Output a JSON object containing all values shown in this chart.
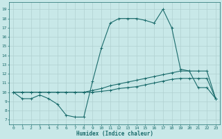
{
  "xlabel": "Humidex (Indice chaleur)",
  "background_color": "#c8e8e8",
  "grid_color": "#b0d0d0",
  "line_color": "#1a6b6b",
  "xlim": [
    -0.5,
    23.5
  ],
  "ylim": [
    6.5,
    19.8
  ],
  "xticks": [
    0,
    1,
    2,
    3,
    4,
    5,
    6,
    7,
    8,
    9,
    10,
    11,
    12,
    13,
    14,
    15,
    16,
    17,
    18,
    19,
    20,
    21,
    22,
    23
  ],
  "yticks": [
    7,
    8,
    9,
    10,
    11,
    12,
    13,
    14,
    15,
    16,
    17,
    18,
    19
  ],
  "line1_x": [
    0,
    1,
    2,
    3,
    4,
    5,
    6,
    7,
    8,
    9,
    10,
    11,
    12,
    13,
    14,
    15,
    16,
    17,
    18,
    19,
    20,
    21,
    22,
    23
  ],
  "line1_y": [
    10,
    9.3,
    9.3,
    9.7,
    9.3,
    8.7,
    7.5,
    7.3,
    7.3,
    11.2,
    14.8,
    17.5,
    18,
    18,
    18,
    17.8,
    17.5,
    19,
    17,
    12.5,
    12.3,
    10.5,
    10.5,
    9.3
  ],
  "line2_x": [
    0,
    1,
    2,
    3,
    4,
    5,
    6,
    7,
    8,
    9,
    10,
    11,
    12,
    13,
    14,
    15,
    16,
    17,
    18,
    19,
    20,
    21,
    22,
    23
  ],
  "line2_y": [
    10,
    10,
    10,
    10,
    10,
    10,
    10,
    10,
    10,
    10.2,
    10.4,
    10.7,
    10.9,
    11.1,
    11.3,
    11.5,
    11.7,
    11.9,
    12.1,
    12.3,
    12.3,
    12.3,
    12.3,
    9.3
  ],
  "line3_x": [
    0,
    1,
    2,
    3,
    4,
    5,
    6,
    7,
    8,
    9,
    10,
    11,
    12,
    13,
    14,
    15,
    16,
    17,
    18,
    19,
    20,
    21,
    22,
    23
  ],
  "line3_y": [
    10,
    10,
    10,
    10,
    10,
    10,
    10,
    10,
    10,
    10,
    10.1,
    10.2,
    10.4,
    10.5,
    10.6,
    10.8,
    11.0,
    11.2,
    11.4,
    11.5,
    11.5,
    11.5,
    11.5,
    9.3
  ]
}
